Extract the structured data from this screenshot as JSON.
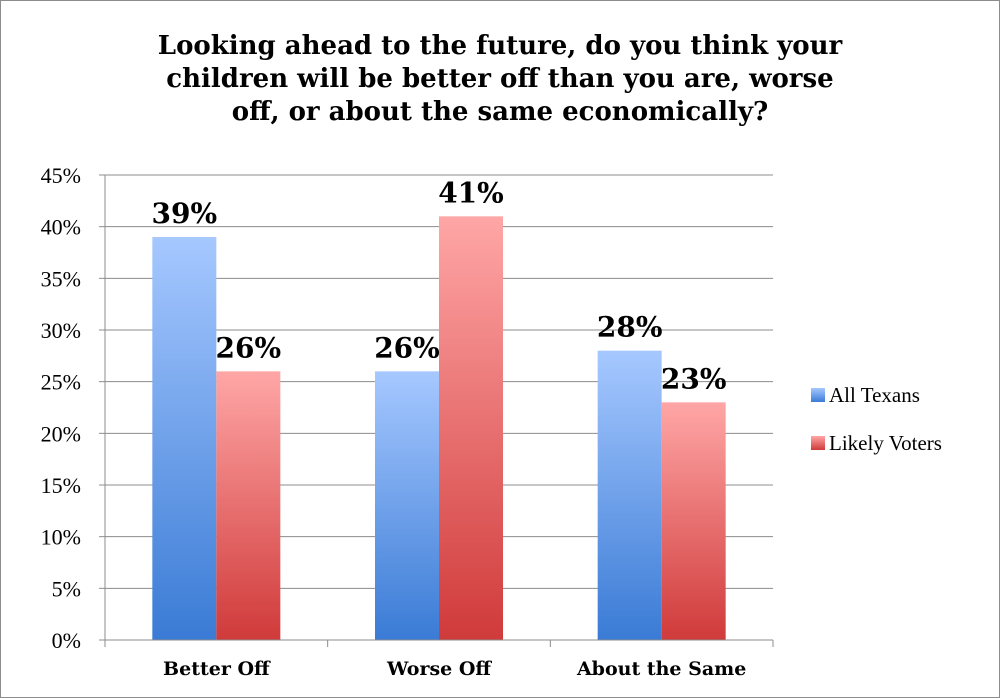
{
  "chart_data": {
    "type": "bar",
    "title": "Looking ahead to the future, do you think your children will be better off than you are, worse off, or about the same economically?",
    "categories": [
      "Better Off",
      "Worse Off",
      "About the Same"
    ],
    "series": [
      {
        "name": "All Texans",
        "values": [
          39,
          26,
          28
        ]
      },
      {
        "name": "Likely Voters",
        "values": [
          26,
          41,
          23
        ]
      }
    ],
    "value_suffix": "%",
    "ylim": [
      0,
      45
    ],
    "yticks": [
      0,
      5,
      10,
      15,
      20,
      25,
      30,
      35,
      40,
      45
    ],
    "grid": true,
    "legend": "right",
    "colors": {
      "All Texans": {
        "top": "#a6c8ff",
        "bottom": "#3a7bd5"
      },
      "Likely Voters": {
        "top": "#ffa6a6",
        "bottom": "#d03a3a"
      }
    }
  }
}
